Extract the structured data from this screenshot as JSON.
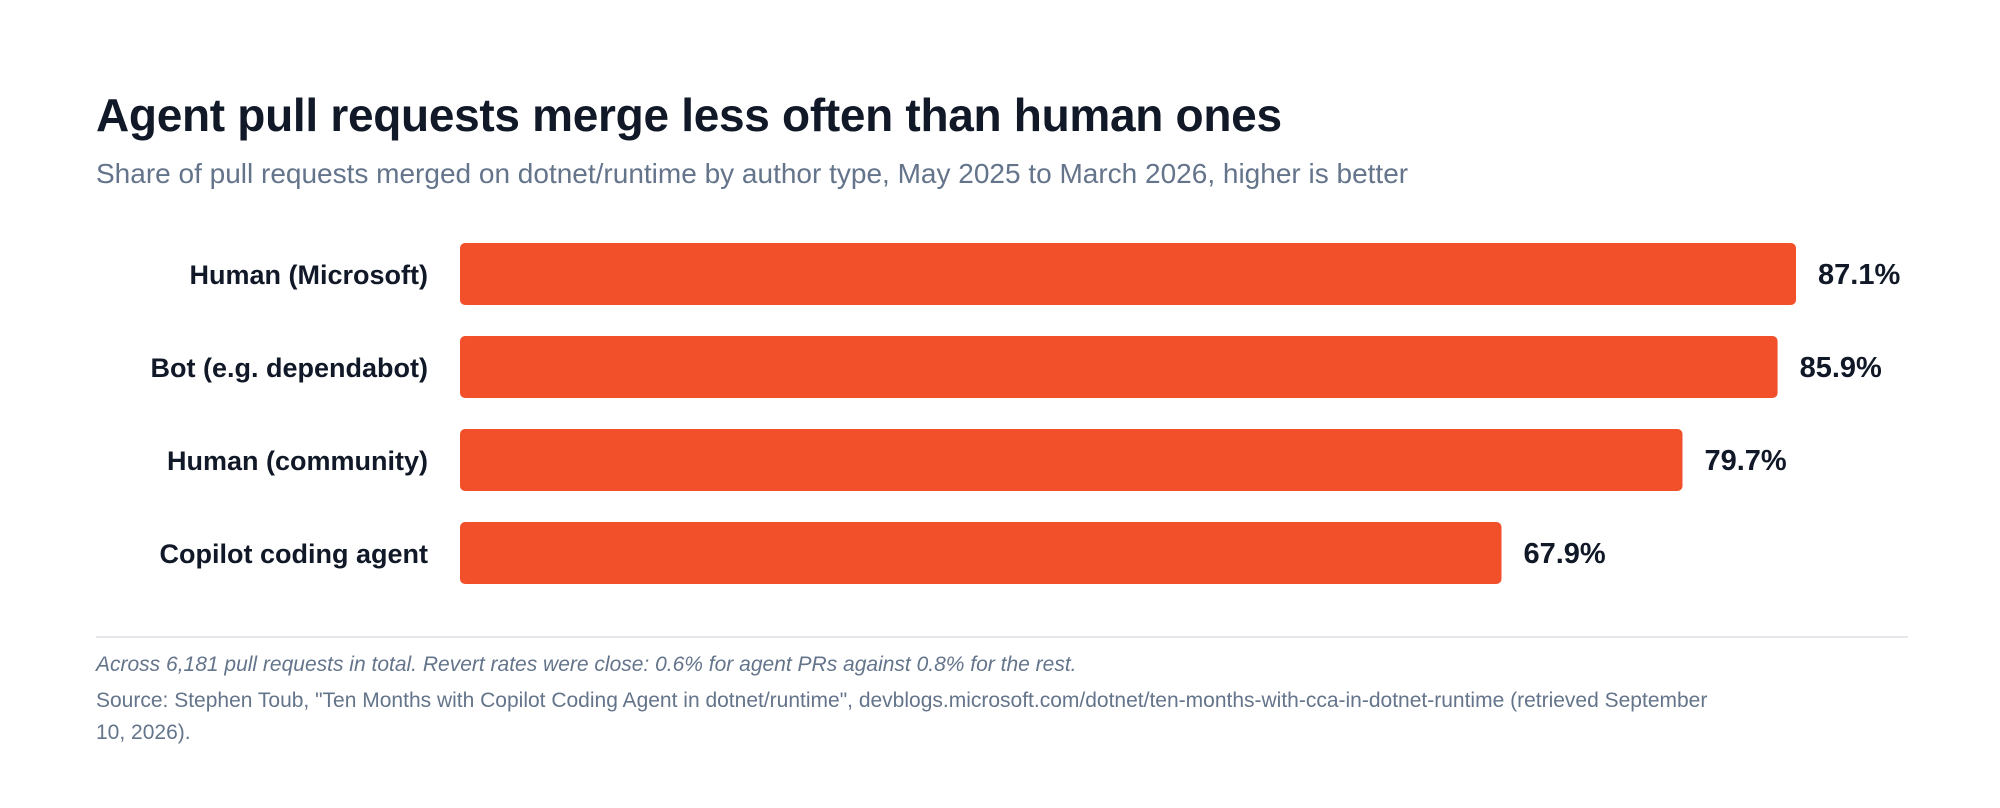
{
  "chart_data": {
    "type": "bar",
    "orientation": "horizontal",
    "title": "Agent pull requests merge less often than human ones",
    "subtitle": "Share of pull requests merged on dotnet/runtime by author type, May 2025 to March 2026, higher is better",
    "categories": [
      "Human (Microsoft)",
      "Bot (e.g. dependabot)",
      "Human (community)",
      "Copilot coding agent"
    ],
    "values": [
      87.1,
      85.9,
      79.7,
      67.9
    ],
    "value_labels": [
      "87.1%",
      "85.9%",
      "79.7%",
      "67.9%"
    ],
    "unit": "%",
    "xlim": [
      0,
      87.1
    ],
    "grid": false,
    "legend": "none",
    "bar_color": "#f2502a"
  },
  "footer": {
    "note": "Across 6,181 pull requests in total. Revert rates were close: 0.6% for agent PRs against 0.8% for the rest.",
    "source": "Source: Stephen Toub, \"Ten Months with Copilot Coding Agent in dotnet/runtime\", devblogs.microsoft.com/dotnet/ten-months-with-cca-in-dotnet-runtime (retrieved September 10, 2026)."
  }
}
